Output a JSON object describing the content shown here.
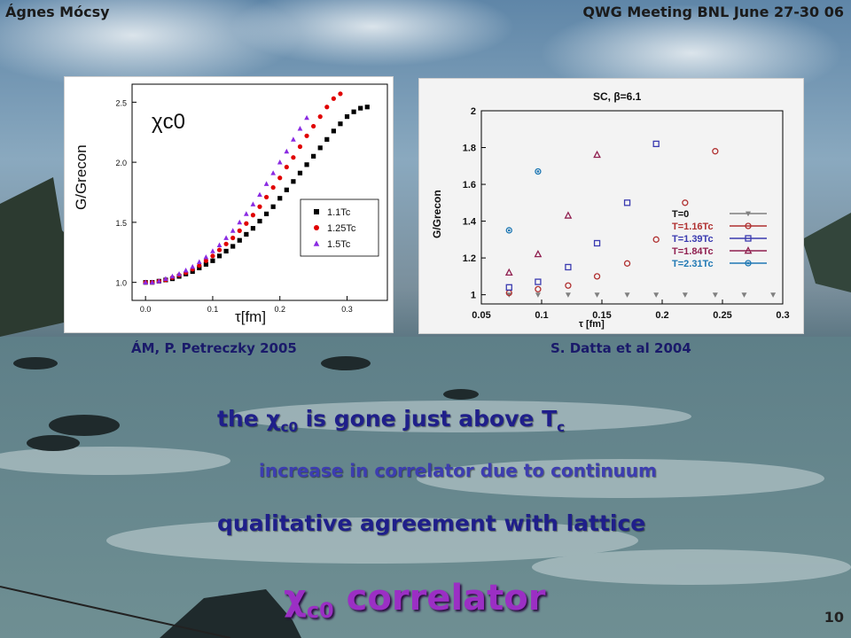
{
  "header": {
    "author": "Ágnes Mócsy",
    "meeting": "QWG Meeting BNL June 27-30 06"
  },
  "captions": {
    "left": "ÁM, P. Petreczky 2005",
    "right": "S. Datta et al 2004"
  },
  "bullets": {
    "line1_a": "the ",
    "line1_chi": "χ",
    "line1_sub": "c0",
    "line1_b": " is gone just above T",
    "line1_tsub": "c",
    "line2": "increase in correlator due to continuum",
    "line3": "qualitative agreement with lattice"
  },
  "title": {
    "chi": "χ",
    "sub": "c0",
    "word": " correlator"
  },
  "page_number": "10",
  "colors": {
    "title": "#9b2fc4",
    "text": "#1f1f8a"
  },
  "chart_data": [
    {
      "type": "scatter",
      "title": "χc0",
      "xlabel": "τ[fm]",
      "ylabel": "G/Grecon",
      "xlim": [
        -0.02,
        0.36
      ],
      "ylim": [
        0.85,
        2.65
      ],
      "xticks": [
        "0.0",
        "0.1",
        "0.2",
        "0.3"
      ],
      "xtick_vals": [
        0.0,
        0.1,
        0.2,
        0.3
      ],
      "yticks": [
        "1.0",
        "1.5",
        "2.0",
        "2.5"
      ],
      "ytick_vals": [
        1.0,
        1.5,
        2.0,
        2.5
      ],
      "legend": "bottom-right",
      "series": [
        {
          "name": "1.1Tc",
          "marker": "square",
          "color": "#000000",
          "x": [
            0.0,
            0.01,
            0.02,
            0.03,
            0.04,
            0.05,
            0.06,
            0.07,
            0.08,
            0.09,
            0.1,
            0.11,
            0.12,
            0.13,
            0.14,
            0.15,
            0.16,
            0.17,
            0.18,
            0.19,
            0.2,
            0.21,
            0.22,
            0.23,
            0.24,
            0.25,
            0.26,
            0.27,
            0.28,
            0.29,
            0.3,
            0.31,
            0.32,
            0.33
          ],
          "y": [
            1.0,
            1.0,
            1.01,
            1.02,
            1.03,
            1.05,
            1.07,
            1.09,
            1.12,
            1.15,
            1.18,
            1.22,
            1.26,
            1.3,
            1.35,
            1.4,
            1.45,
            1.51,
            1.57,
            1.63,
            1.7,
            1.77,
            1.84,
            1.91,
            1.98,
            2.05,
            2.12,
            2.19,
            2.26,
            2.32,
            2.38,
            2.42,
            2.45,
            2.46
          ]
        },
        {
          "name": "1.25Tc",
          "marker": "circle",
          "color": "#e00000",
          "x": [
            0.0,
            0.01,
            0.02,
            0.03,
            0.04,
            0.05,
            0.06,
            0.07,
            0.08,
            0.09,
            0.1,
            0.11,
            0.12,
            0.13,
            0.14,
            0.15,
            0.16,
            0.17,
            0.18,
            0.19,
            0.2,
            0.21,
            0.22,
            0.23,
            0.24,
            0.25,
            0.26,
            0.27,
            0.28,
            0.29
          ],
          "y": [
            1.0,
            1.0,
            1.01,
            1.02,
            1.04,
            1.06,
            1.08,
            1.11,
            1.14,
            1.18,
            1.22,
            1.27,
            1.32,
            1.37,
            1.43,
            1.49,
            1.56,
            1.63,
            1.71,
            1.79,
            1.87,
            1.96,
            2.04,
            2.13,
            2.22,
            2.3,
            2.38,
            2.46,
            2.53,
            2.57
          ]
        },
        {
          "name": "1.5Tc",
          "marker": "triangle",
          "color": "#8a2be2",
          "x": [
            0.0,
            0.01,
            0.02,
            0.03,
            0.04,
            0.05,
            0.06,
            0.07,
            0.08,
            0.09,
            0.1,
            0.11,
            0.12,
            0.13,
            0.14,
            0.15,
            0.16,
            0.17,
            0.18,
            0.19,
            0.2,
            0.21,
            0.22,
            0.23,
            0.24
          ],
          "y": [
            1.0,
            1.0,
            1.01,
            1.03,
            1.05,
            1.07,
            1.1,
            1.13,
            1.17,
            1.21,
            1.26,
            1.31,
            1.37,
            1.43,
            1.5,
            1.57,
            1.65,
            1.73,
            1.82,
            1.91,
            2.0,
            2.09,
            2.19,
            2.28,
            2.37
          ]
        }
      ]
    },
    {
      "type": "scatter",
      "title": "SC, β=6.1",
      "xlabel": "τ [fm]",
      "ylabel": "G/Grecon",
      "xlim": [
        0.05,
        0.3
      ],
      "ylim": [
        0.95,
        2.0
      ],
      "xticks": [
        "0.05",
        "0.1",
        "0.15",
        "0.2",
        "0.25",
        "0.3"
      ],
      "xtick_vals": [
        0.05,
        0.1,
        0.15,
        0.2,
        0.25,
        0.3
      ],
      "yticks": [
        "1",
        "1.2",
        "1.4",
        "1.6",
        "1.8",
        "2"
      ],
      "ytick_vals": [
        1.0,
        1.2,
        1.4,
        1.6,
        1.8,
        2.0
      ],
      "legend": "right",
      "series": [
        {
          "name": "T=0",
          "marker": "triangle-down",
          "color": "#808080",
          "x": [
            0.073,
            0.097,
            0.122,
            0.146,
            0.171,
            0.195,
            0.219,
            0.244,
            0.268,
            0.292
          ],
          "y": [
            1.0,
            1.0,
            1.0,
            1.0,
            1.0,
            1.0,
            1.0,
            1.0,
            1.0,
            1.0
          ]
        },
        {
          "name": "T=1.16Tc",
          "marker": "circle",
          "color": "#b03030",
          "x": [
            0.073,
            0.097,
            0.122,
            0.146,
            0.171,
            0.195,
            0.219,
            0.244
          ],
          "y": [
            1.01,
            1.03,
            1.05,
            1.1,
            1.17,
            1.3,
            1.5,
            1.78
          ]
        },
        {
          "name": "T=1.39Tc",
          "marker": "square",
          "color": "#3a3ab0",
          "x": [
            0.073,
            0.097,
            0.122,
            0.146,
            0.171,
            0.195
          ],
          "y": [
            1.04,
            1.07,
            1.15,
            1.28,
            1.5,
            1.82
          ]
        },
        {
          "name": "T=1.84Tc",
          "marker": "triangle",
          "color": "#902050",
          "x": [
            0.073,
            0.097,
            0.122,
            0.146
          ],
          "y": [
            1.12,
            1.22,
            1.43,
            1.76
          ]
        },
        {
          "name": "T=2.31Tc",
          "marker": "diamond",
          "color": "#1f78b4",
          "x": [
            0.073,
            0.097
          ],
          "y": [
            1.35,
            1.67
          ]
        }
      ]
    }
  ]
}
